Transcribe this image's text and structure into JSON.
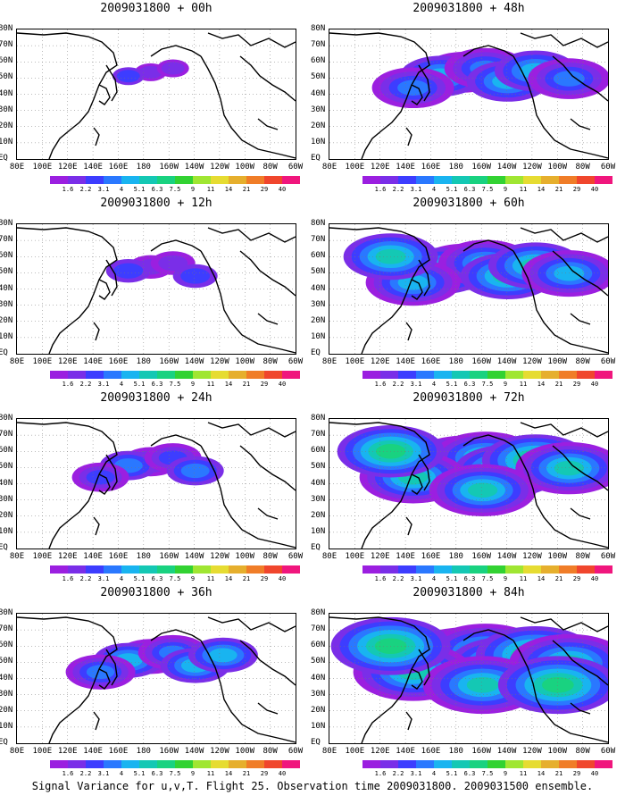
{
  "caption": "Signal Variance for u,v,T. Flight 25. Observation time 2009031800. 2009031500 ensemble.",
  "lat_labels": [
    "80N",
    "70N",
    "60N",
    "50N",
    "40N",
    "30N",
    "20N",
    "10N",
    "EQ"
  ],
  "lon_labels": [
    "80E",
    "100E",
    "120E",
    "140E",
    "160E",
    "180",
    "160W",
    "140W",
    "120W",
    "100W",
    "80W",
    "60W"
  ],
  "colorbar": {
    "labels": [
      "1.6",
      "2.2",
      "3.1",
      "4",
      "5.1",
      "6.3",
      "7.5",
      "9",
      "11",
      "14",
      "21",
      "29",
      "40"
    ],
    "colors": [
      "#9b1fe0",
      "#7a2ee8",
      "#3d3dff",
      "#2a78ff",
      "#19b4f0",
      "#14c8b4",
      "#19d280",
      "#32d232",
      "#a0e632",
      "#e6dc32",
      "#e6af2d",
      "#f07d28",
      "#f0462d",
      "#f0167d"
    ]
  },
  "panels": [
    {
      "title": "2009031800 + 00h",
      "level": 0
    },
    {
      "title": "2009031800 + 48h",
      "level": 4
    },
    {
      "title": "2009031800 + 12h",
      "level": 1
    },
    {
      "title": "2009031800 + 60h",
      "level": 5
    },
    {
      "title": "2009031800 + 24h",
      "level": 2
    },
    {
      "title": "2009031800 + 72h",
      "level": 6
    },
    {
      "title": "2009031800 + 36h",
      "level": 3
    },
    {
      "title": "2009031800 + 84h",
      "level": 7
    }
  ]
}
